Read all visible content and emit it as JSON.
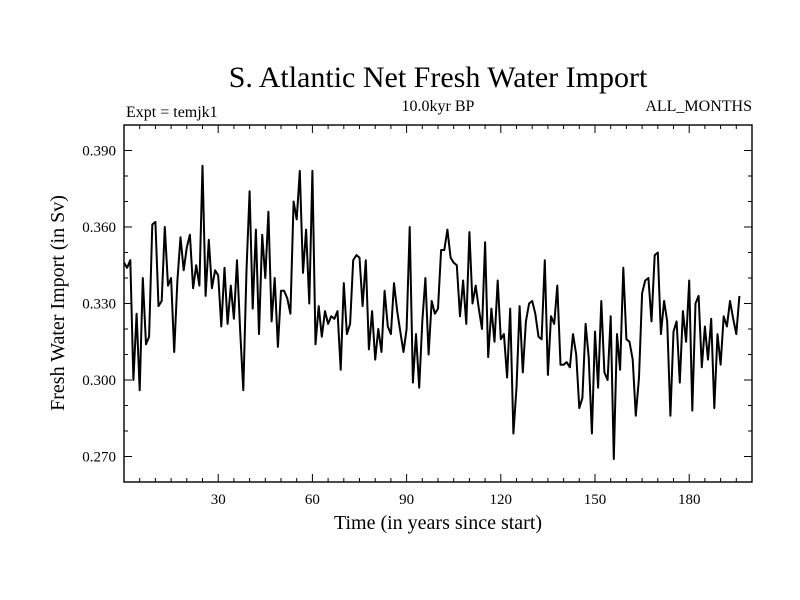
{
  "chart_data": {
    "type": "line",
    "title": "S. Atlantic Net Fresh Water Import",
    "left_label": "Expt = temjk1",
    "center_label": "10.0kyr BP",
    "right_label": "ALL_MONTHS",
    "xlabel": "Time (in years since start)",
    "ylabel": "Fresh Water Import (in Sv)",
    "xlim": [
      0,
      200
    ],
    "ylim": [
      0.26,
      0.4
    ],
    "xticks": [
      30,
      60,
      90,
      120,
      150,
      180
    ],
    "xtick_labels": [
      "30",
      "60",
      "90",
      "120",
      "150",
      "180"
    ],
    "yticks": [
      0.27,
      0.3,
      0.33,
      0.36,
      0.39
    ],
    "ytick_labels": [
      "0.270",
      "0.300",
      "0.330",
      "0.360",
      "0.390"
    ],
    "grid": false,
    "series": [
      {
        "name": "Fresh Water Import",
        "color": "#000000",
        "x_start": 0,
        "x_step": 1,
        "values": [
          0.346,
          0.344,
          0.347,
          0.3,
          0.326,
          0.296,
          0.34,
          0.314,
          0.317,
          0.361,
          0.362,
          0.329,
          0.331,
          0.36,
          0.337,
          0.34,
          0.311,
          0.339,
          0.356,
          0.343,
          0.352,
          0.357,
          0.336,
          0.345,
          0.337,
          0.384,
          0.333,
          0.355,
          0.336,
          0.343,
          0.341,
          0.321,
          0.344,
          0.322,
          0.337,
          0.324,
          0.347,
          0.319,
          0.296,
          0.343,
          0.374,
          0.328,
          0.359,
          0.318,
          0.357,
          0.34,
          0.366,
          0.323,
          0.34,
          0.313,
          0.335,
          0.335,
          0.332,
          0.326,
          0.37,
          0.363,
          0.382,
          0.342,
          0.359,
          0.33,
          0.382,
          0.314,
          0.329,
          0.317,
          0.327,
          0.322,
          0.325,
          0.324,
          0.327,
          0.304,
          0.338,
          0.318,
          0.322,
          0.347,
          0.349,
          0.348,
          0.329,
          0.347,
          0.312,
          0.327,
          0.308,
          0.32,
          0.311,
          0.335,
          0.321,
          0.318,
          0.338,
          0.327,
          0.319,
          0.311,
          0.32,
          0.36,
          0.299,
          0.318,
          0.297,
          0.323,
          0.34,
          0.31,
          0.331,
          0.326,
          0.328,
          0.351,
          0.351,
          0.359,
          0.348,
          0.346,
          0.345,
          0.325,
          0.339,
          0.322,
          0.358,
          0.33,
          0.337,
          0.328,
          0.32,
          0.354,
          0.309,
          0.328,
          0.315,
          0.339,
          0.316,
          0.318,
          0.301,
          0.328,
          0.279,
          0.297,
          0.329,
          0.303,
          0.323,
          0.33,
          0.331,
          0.326,
          0.317,
          0.316,
          0.347,
          0.302,
          0.325,
          0.322,
          0.337,
          0.306,
          0.306,
          0.307,
          0.305,
          0.318,
          0.31,
          0.289,
          0.293,
          0.322,
          0.309,
          0.279,
          0.319,
          0.297,
          0.331,
          0.303,
          0.3,
          0.325,
          0.269,
          0.318,
          0.304,
          0.344,
          0.316,
          0.315,
          0.308,
          0.286,
          0.301,
          0.334,
          0.339,
          0.34,
          0.323,
          0.349,
          0.35,
          0.318,
          0.331,
          0.323,
          0.286,
          0.319,
          0.323,
          0.299,
          0.327,
          0.315,
          0.339,
          0.288,
          0.33,
          0.333,
          0.305,
          0.321,
          0.308,
          0.324,
          0.289,
          0.318,
          0.306,
          0.325,
          0.321,
          0.331,
          0.324,
          0.318,
          0.333
        ]
      }
    ]
  }
}
